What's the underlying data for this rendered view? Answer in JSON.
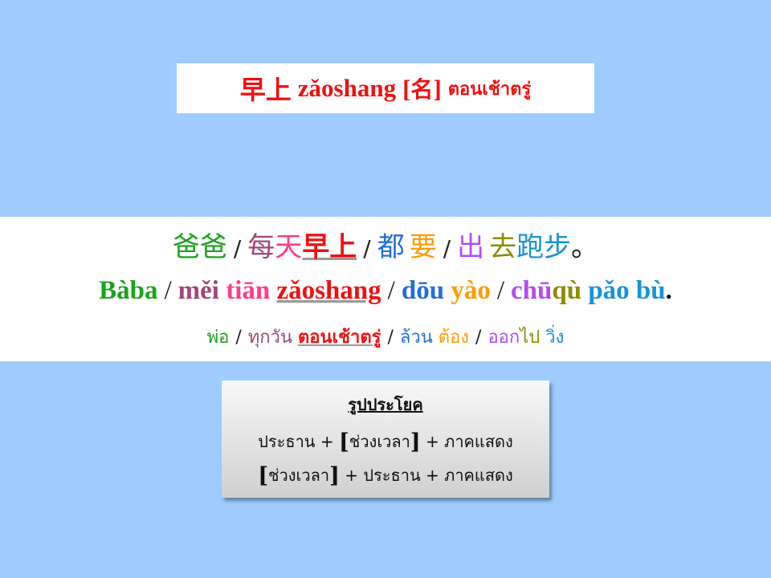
{
  "title": {
    "hanzi": "早上",
    "pinyin": "zǎoshang",
    "pos_open": "[",
    "pos_hanzi": "名",
    "pos_close": "]",
    "thai": "ตอนเช้าตรู่"
  },
  "example": {
    "separator": "/",
    "hanzi": {
      "w1": "爸爸",
      "w2": "每天",
      "w3": "早上",
      "w4": "都",
      "w5": "要",
      "w6": "出",
      "w7": "去",
      "w8": "跑步",
      "end": "。"
    },
    "pinyin": {
      "w1": "Bàba",
      "w2a": "měi",
      "w2b": "tiān",
      "w3": "zǎoshang",
      "w4": "dōu",
      "w5": "yào",
      "w6": "chū",
      "w7": "qù",
      "w8a": "pǎo",
      "w8b": "bù",
      "end": "."
    },
    "thai": {
      "w1": "พ่อ",
      "w2": "ทุกวัน",
      "w3": "ตอนเช้าตรู่",
      "w4": "ล้วน",
      "w5": "ต้อง",
      "w6": "ออก",
      "w7": "ไป",
      "w8": "วิ่ง"
    }
  },
  "pattern": {
    "heading": "รูปประโยค",
    "bracket_open": "[",
    "bracket_close": "]",
    "subject": "ประธาน",
    "time": "ช่วงเวลา",
    "predicate": "ภาคแสดง",
    "plus": "+"
  },
  "colors": {
    "background": "#9fcbff",
    "red": "#ee1111",
    "green": "#1aa31a",
    "purple": "#a0467a",
    "pink": "#ff3c8c",
    "blue": "#1f6fd6",
    "orange": "#ff9b00",
    "violet": "#b44cf0",
    "olive": "#8c8c00",
    "cyan": "#1793d6"
  }
}
